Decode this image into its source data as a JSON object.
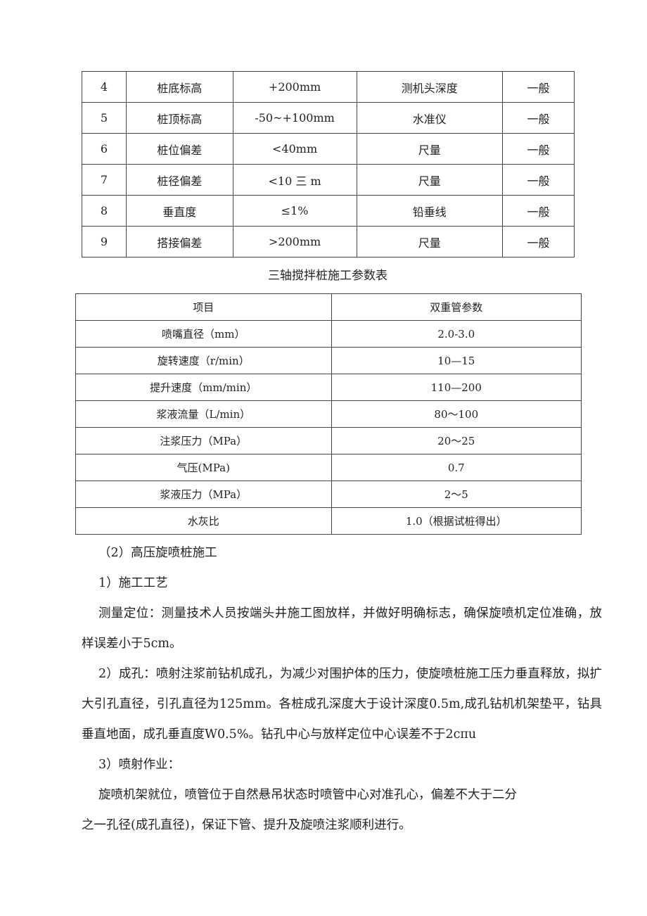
{
  "table1": {
    "rows": [
      [
        "4",
        "桩底标高",
        "+200mm",
        "测机头深度",
        "一般"
      ],
      [
        "5",
        "桩顶标高",
        "-50~+100mm",
        "水准仪",
        "一般"
      ],
      [
        "6",
        "桩位偏差",
        "<40mm",
        "尺量",
        "一般"
      ],
      [
        "7",
        "桩径偏差",
        "<10 三 m",
        "尺量",
        "一般"
      ],
      [
        "8",
        "垂直度",
        "≤1%",
        "铅垂线",
        "一般"
      ],
      [
        "9",
        "搭接偏差",
        ">200mm",
        "尺量",
        "一般"
      ]
    ]
  },
  "table2": {
    "caption": "三轴搅拌桩施工参数表",
    "headers": [
      "项目",
      "双重管参数"
    ],
    "rows": [
      [
        "喷嘴直径（mm）",
        "2.0-3.0"
      ],
      [
        "旋转速度（r/min）",
        "10—15"
      ],
      [
        "提升速度（mm/min）",
        "110—200"
      ],
      [
        "浆液流量（L/min）",
        "80～100"
      ],
      [
        "注浆压力（MPa）",
        "20～25"
      ],
      [
        "气压(MPa)",
        "0.7"
      ],
      [
        "浆液压力（MPa）",
        "2～5"
      ],
      [
        "水灰比",
        "1.0（根据试桩得出）"
      ]
    ]
  },
  "body": {
    "heading": "（2）高压旋喷桩施工",
    "sub1": "1）施工工艺",
    "para1": "测量定位：测量技术人员按端头井施工图放样，并做好明确标志，确保旋喷机定位准确，放样误差小于5cm。",
    "para2": "2）成孔：喷射注浆前钻机成孔，为减少对围护体的压力，使旋喷桩施工压力垂直释放，拟扩大引孔直径，引孔直径为125mm。各桩成孔深度大于设计深度0.5m,成孔钻机机架垫平，钻具垂直地面，成孔垂直度W0.5%。钻孔中心与放样定位中心误差不于2cπu",
    "sub3": "3）喷射作业：",
    "para3a": "旋喷机架就位，喷管位于自然悬吊状态时喷管中心对准孔心，偏差不大于二分",
    "para3b": "之一孔径(成孔直径)，保证下管、提升及旋喷注浆顺利进行。"
  }
}
